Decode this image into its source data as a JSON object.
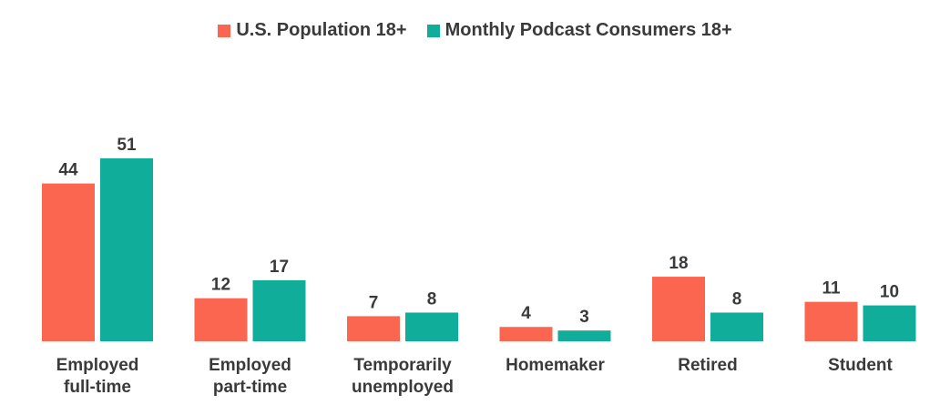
{
  "chart_data": {
    "type": "bar",
    "categories": [
      [
        "Employed",
        "full-time"
      ],
      [
        "Employed",
        "part-time"
      ],
      [
        "Temporarily",
        "unemployed"
      ],
      [
        "Homemaker"
      ],
      [
        "Retired"
      ],
      [
        "Student"
      ]
    ],
    "series": [
      {
        "name": "U.S. Population 18+",
        "color": "#fa6650",
        "values": [
          44,
          12,
          7,
          4,
          18,
          11
        ]
      },
      {
        "name": "Monthly Podcast Consumers 18+",
        "color": "#11ad9b",
        "values": [
          51,
          17,
          8,
          3,
          8,
          10
        ]
      }
    ],
    "ylim": [
      0,
      51
    ],
    "grid": false,
    "legend_position": "top-center",
    "title": "",
    "xlabel": "",
    "ylabel": ""
  }
}
